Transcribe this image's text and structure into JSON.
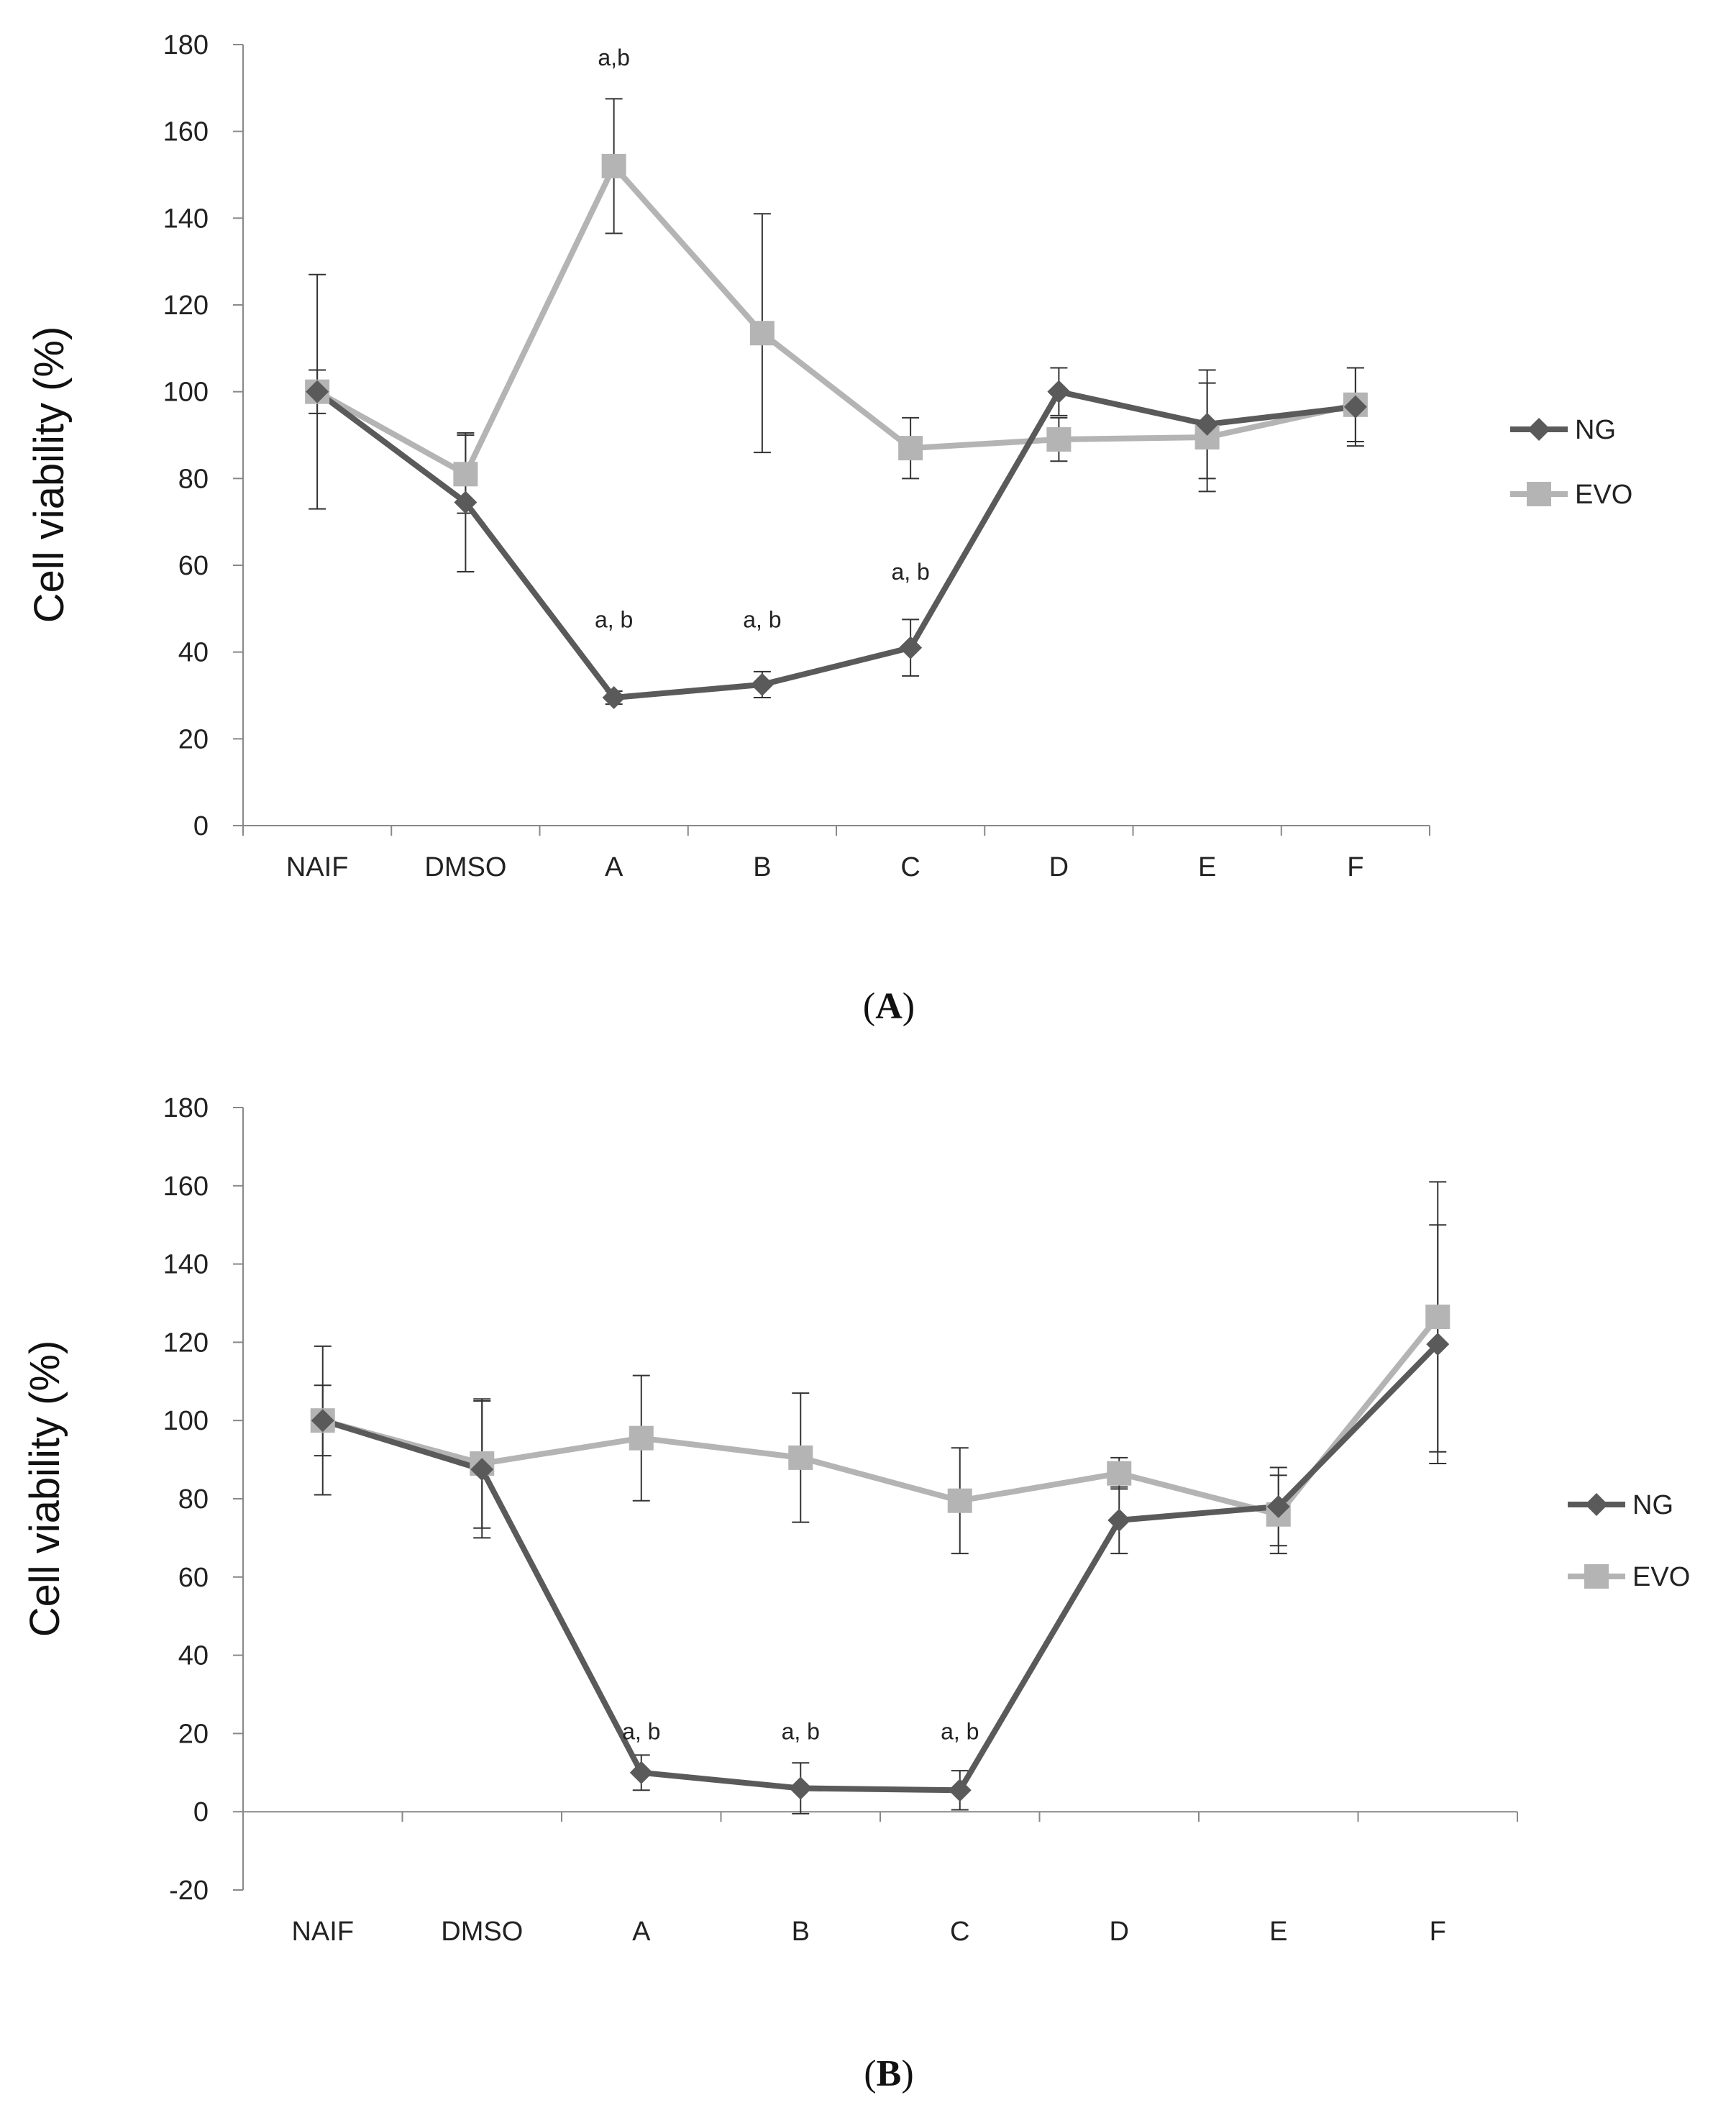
{
  "chart_data": [
    {
      "panel": "A",
      "type": "line",
      "ylabel": "Cell viability (%)",
      "ylim": [
        0,
        180
      ],
      "yticks": [
        "0",
        "20",
        "40",
        "60",
        "80",
        "100",
        "120",
        "140",
        "160",
        "180"
      ],
      "categories": [
        "NAIF",
        "DMSO",
        "A",
        "B",
        "C",
        "D",
        "E",
        "F"
      ],
      "series": [
        {
          "name": "NG",
          "color": "#5a5a5a",
          "marker": "diamond",
          "values": [
            100,
            74.5,
            29.5,
            32.5,
            41,
            100,
            92.5,
            96.5
          ],
          "errors": [
            5,
            16,
            1.5,
            3,
            6.5,
            5.5,
            12.5,
            9
          ]
        },
        {
          "name": "EVO",
          "color": "#b4b4b4",
          "marker": "square",
          "values": [
            100,
            81,
            152,
            113.5,
            87,
            89,
            89.5,
            97
          ],
          "errors": [
            27,
            9,
            15.5,
            27.5,
            7,
            5,
            12.5,
            8.5
          ]
        }
      ],
      "annotations": [
        {
          "category": "A",
          "value": 177,
          "text": "a,b"
        },
        {
          "category": "A",
          "value": 47.5,
          "text": "a, b"
        },
        {
          "category": "B",
          "value": 47.5,
          "text": "a, b"
        },
        {
          "category": "C",
          "value": 58.5,
          "text": "a, b"
        }
      ],
      "legend": [
        "NG",
        "EVO"
      ],
      "caption": "A"
    },
    {
      "panel": "B",
      "type": "line",
      "ylabel": "Cell viability (%)",
      "ylim": [
        -20,
        180
      ],
      "yticks": [
        "-20",
        "0",
        "20",
        "40",
        "60",
        "80",
        "100",
        "120",
        "140",
        "160",
        "180"
      ],
      "categories": [
        "NAIF",
        "DMSO",
        "A",
        "B",
        "C",
        "D",
        "E",
        "F"
      ],
      "series": [
        {
          "name": "NG",
          "color": "#5a5a5a",
          "marker": "diamond",
          "values": [
            100,
            87.5,
            10,
            6,
            5.5,
            74.5,
            78,
            119.5
          ],
          "errors": [
            9,
            17.5,
            4.5,
            6.5,
            5,
            8.5,
            10,
            30.5
          ]
        },
        {
          "name": "EVO",
          "color": "#b4b4b4",
          "marker": "square",
          "values": [
            100,
            89,
            95.5,
            90.5,
            79.5,
            86.5,
            76,
            126.5
          ],
          "errors": [
            19,
            16.5,
            16,
            16.5,
            13.5,
            4,
            10,
            34.5
          ]
        }
      ],
      "annotations": [
        {
          "category": "A",
          "value": 20.5,
          "text": "a, b"
        },
        {
          "category": "B",
          "value": 20.5,
          "text": "a, b"
        },
        {
          "category": "C",
          "value": 20.5,
          "text": "a, b"
        }
      ],
      "legend": [
        "NG",
        "EVO"
      ],
      "caption": "B"
    }
  ]
}
